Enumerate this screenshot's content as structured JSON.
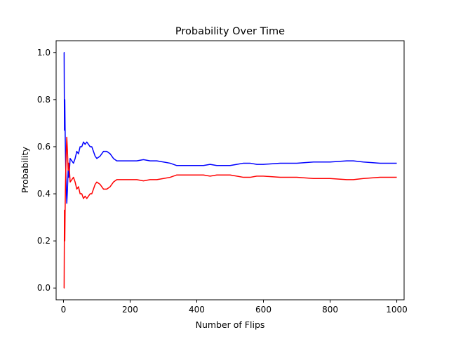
{
  "chart_data": {
    "type": "line",
    "title": "Probability Over Time",
    "xlabel": "Number of Flips",
    "ylabel": "Probability",
    "xlim": [
      -22,
      1022
    ],
    "ylim": [
      -0.05,
      1.05
    ],
    "xticks": [
      0,
      200,
      400,
      600,
      800,
      1000
    ],
    "yticks": [
      0.0,
      0.2,
      0.4,
      0.6,
      0.8,
      1.0
    ],
    "xtick_labels": [
      "0",
      "200",
      "400",
      "600",
      "800",
      "1000"
    ],
    "ytick_labels": [
      "0.0",
      "0.2",
      "0.4",
      "0.6",
      "0.8",
      "1.0"
    ],
    "grid": false,
    "legend": "none",
    "series": [
      {
        "color": "#0000ff",
        "x": [
          1,
          2,
          3,
          4,
          5,
          6,
          7,
          8,
          9,
          10,
          12,
          14,
          16,
          18,
          20,
          25,
          30,
          35,
          40,
          45,
          50,
          55,
          60,
          65,
          70,
          75,
          80,
          85,
          90,
          95,
          100,
          110,
          120,
          130,
          140,
          150,
          160,
          170,
          180,
          190,
          200,
          220,
          240,
          260,
          280,
          300,
          320,
          340,
          360,
          380,
          400,
          420,
          440,
          460,
          480,
          500,
          520,
          540,
          560,
          580,
          600,
          650,
          700,
          750,
          800,
          850,
          870,
          900,
          950,
          1000
        ],
        "y": [
          1.0,
          1.0,
          0.67,
          0.8,
          0.67,
          0.57,
          0.5,
          0.44,
          0.4,
          0.36,
          0.42,
          0.5,
          0.47,
          0.5,
          0.55,
          0.54,
          0.53,
          0.55,
          0.58,
          0.57,
          0.6,
          0.6,
          0.62,
          0.61,
          0.62,
          0.61,
          0.6,
          0.6,
          0.58,
          0.56,
          0.55,
          0.56,
          0.58,
          0.58,
          0.57,
          0.55,
          0.54,
          0.54,
          0.54,
          0.54,
          0.54,
          0.54,
          0.545,
          0.54,
          0.54,
          0.535,
          0.53,
          0.52,
          0.52,
          0.52,
          0.52,
          0.52,
          0.525,
          0.52,
          0.52,
          0.52,
          0.525,
          0.53,
          0.53,
          0.525,
          0.525,
          0.53,
          0.53,
          0.535,
          0.535,
          0.54,
          0.54,
          0.535,
          0.53,
          0.53
        ]
      },
      {
        "color": "#ff0000",
        "x": [
          1,
          2,
          3,
          4,
          5,
          6,
          7,
          8,
          9,
          10,
          12,
          14,
          16,
          18,
          20,
          25,
          30,
          35,
          40,
          45,
          50,
          55,
          60,
          65,
          70,
          75,
          80,
          85,
          90,
          95,
          100,
          110,
          120,
          130,
          140,
          150,
          160,
          170,
          180,
          190,
          200,
          220,
          240,
          260,
          280,
          300,
          320,
          340,
          360,
          380,
          400,
          420,
          440,
          460,
          480,
          500,
          520,
          540,
          560,
          580,
          600,
          650,
          700,
          750,
          800,
          850,
          870,
          900,
          950,
          1000
        ],
        "y": [
          0.0,
          0.0,
          0.33,
          0.2,
          0.33,
          0.43,
          0.5,
          0.56,
          0.6,
          0.64,
          0.58,
          0.5,
          0.53,
          0.5,
          0.45,
          0.46,
          0.47,
          0.45,
          0.42,
          0.43,
          0.4,
          0.4,
          0.38,
          0.39,
          0.38,
          0.39,
          0.4,
          0.4,
          0.42,
          0.44,
          0.45,
          0.44,
          0.42,
          0.42,
          0.43,
          0.45,
          0.46,
          0.46,
          0.46,
          0.46,
          0.46,
          0.46,
          0.455,
          0.46,
          0.46,
          0.465,
          0.47,
          0.48,
          0.48,
          0.48,
          0.48,
          0.48,
          0.475,
          0.48,
          0.48,
          0.48,
          0.475,
          0.47,
          0.47,
          0.475,
          0.475,
          0.47,
          0.47,
          0.465,
          0.465,
          0.46,
          0.46,
          0.465,
          0.47,
          0.47
        ]
      }
    ]
  }
}
